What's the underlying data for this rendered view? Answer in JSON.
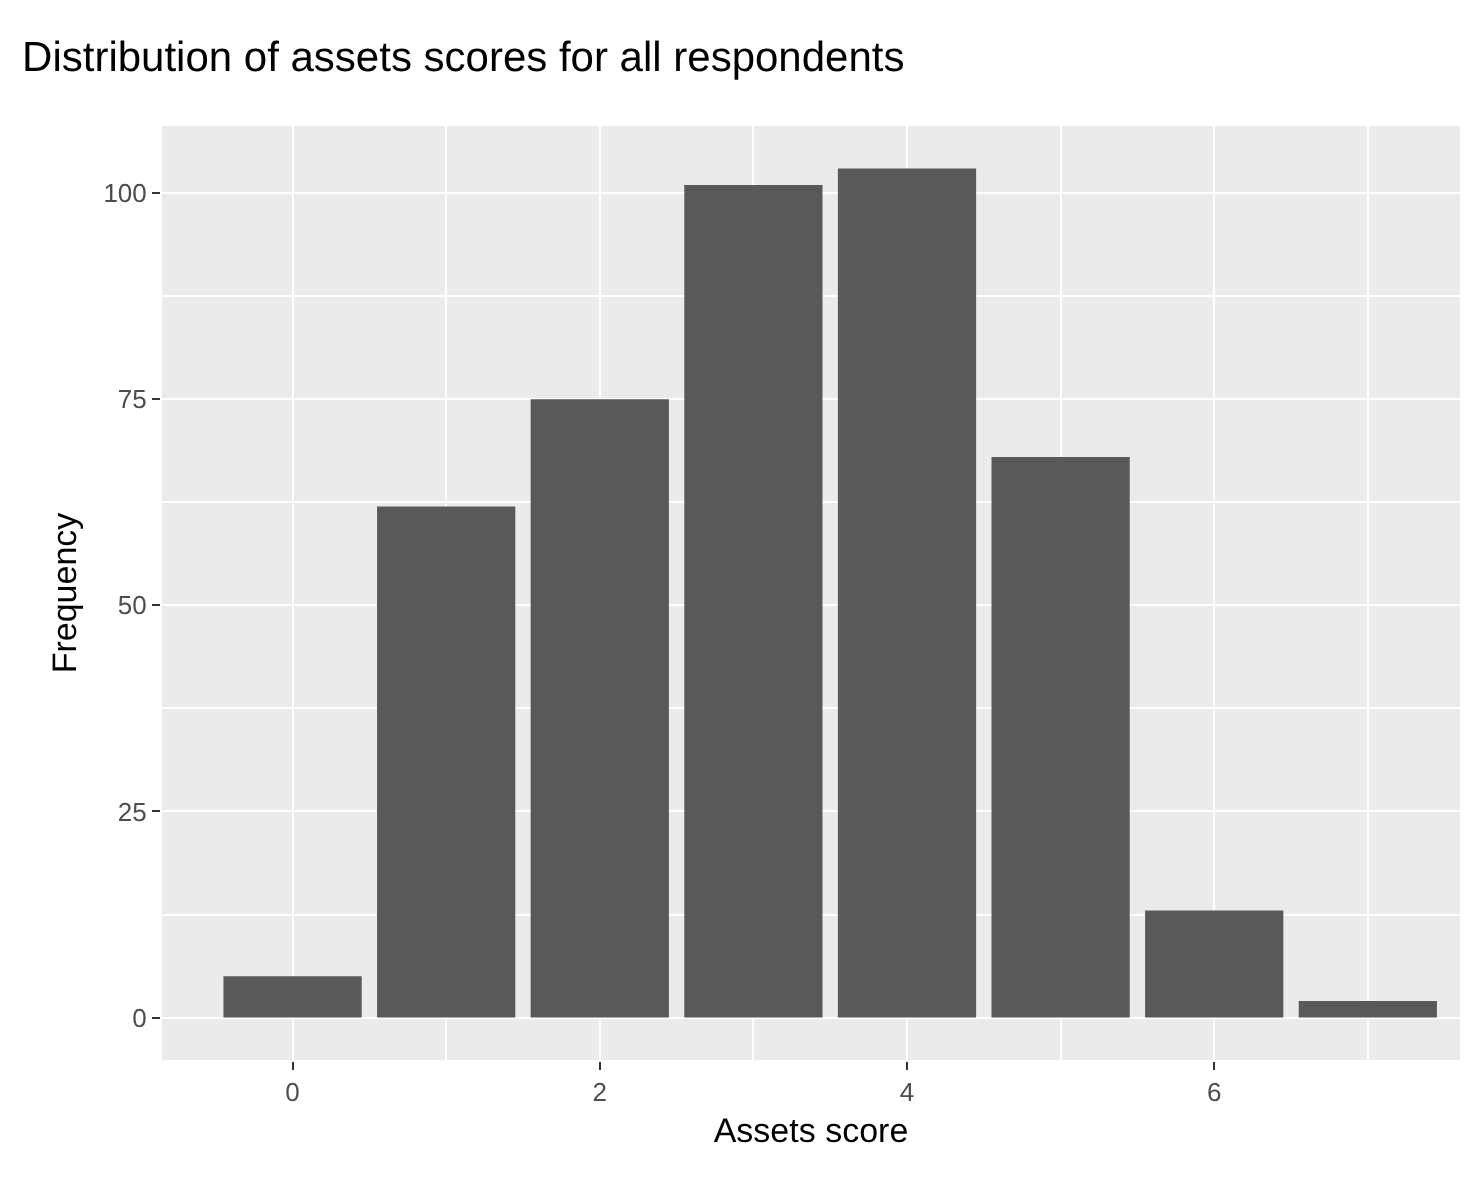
{
  "chart_data": {
    "type": "bar",
    "title": "Distribution of assets scores for all respondents",
    "xlabel": "Assets score",
    "ylabel": "Frequency",
    "x": [
      0,
      1,
      2,
      3,
      4,
      5,
      6,
      7
    ],
    "values": [
      5,
      62,
      75,
      101,
      103,
      68,
      13,
      2
    ],
    "color": "#595959",
    "xlim": [
      -0.85,
      7.6
    ],
    "xticks": [
      0,
      2,
      4,
      6
    ],
    "ylim": [
      -5.15,
      108.15
    ],
    "yticks": [
      0,
      25,
      50,
      75,
      100
    ],
    "grid": true
  }
}
